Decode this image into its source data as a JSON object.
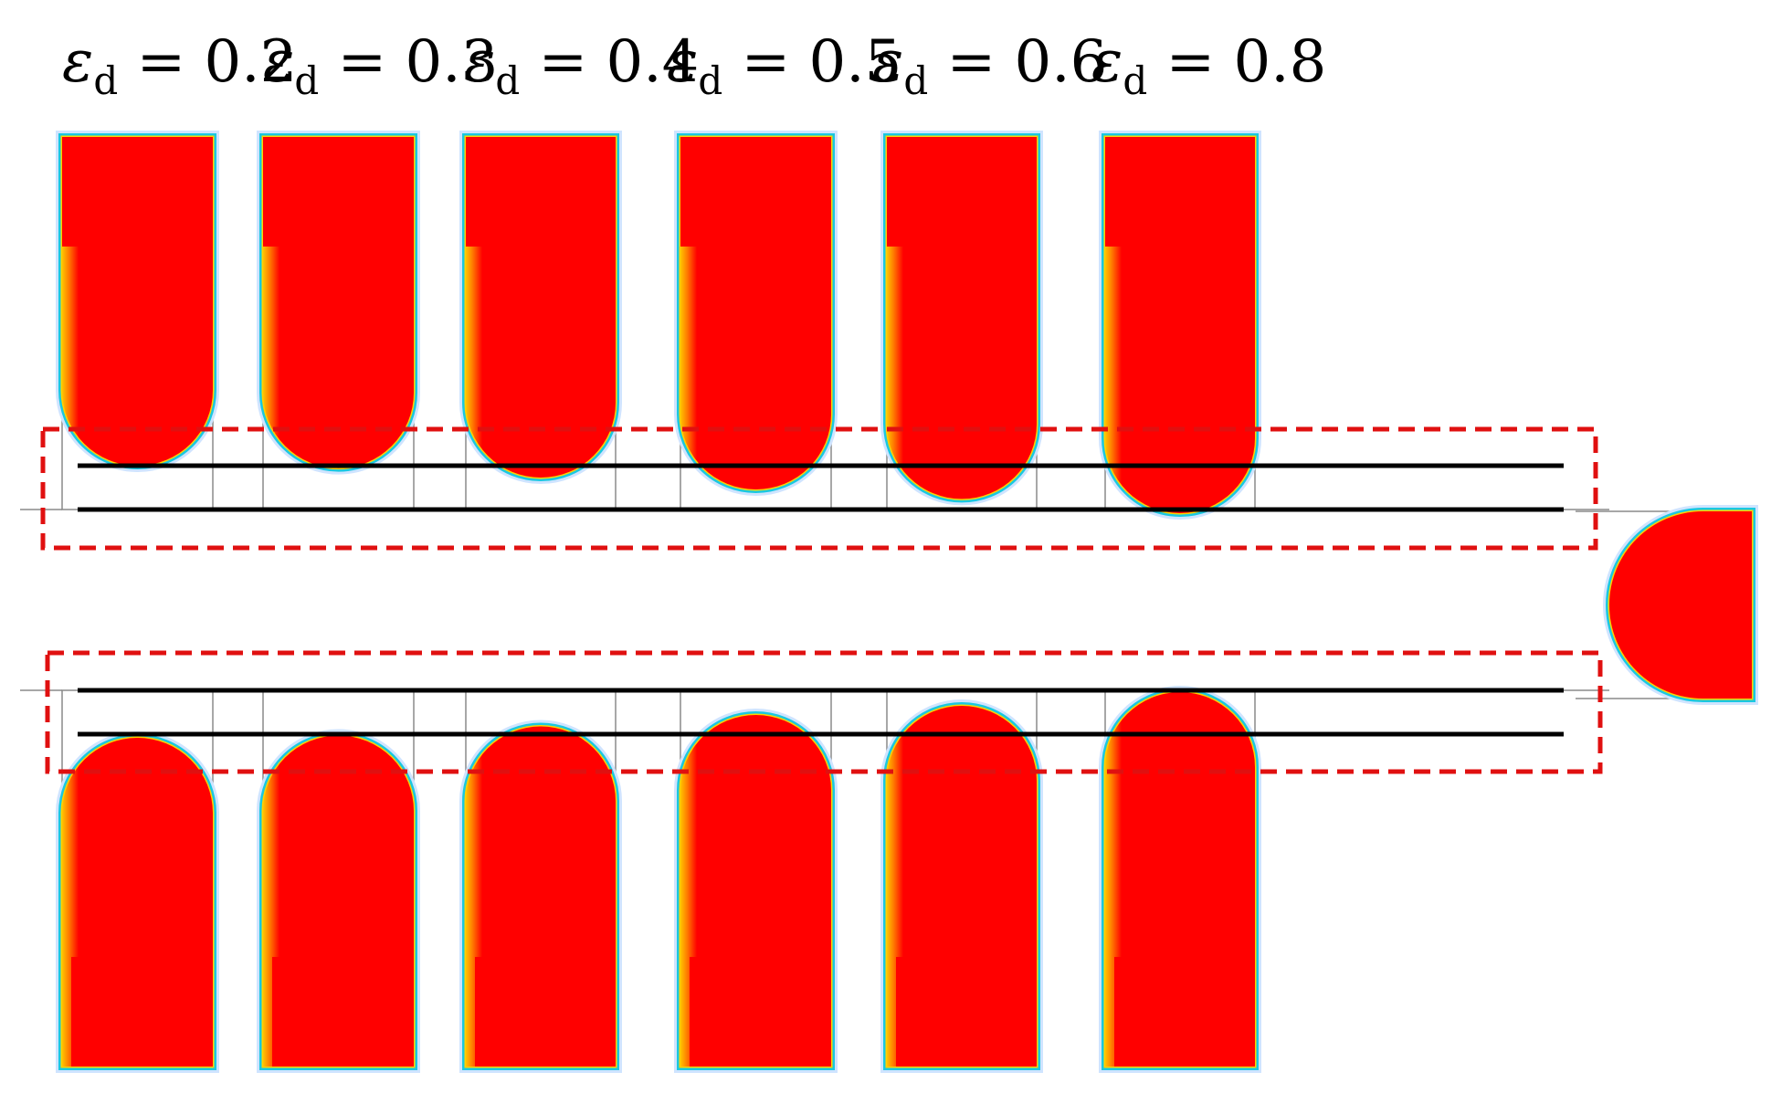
{
  "labels": [
    {
      "symbol": "ε",
      "subscript": "d",
      "equals": " = ",
      "value": "0.2"
    },
    {
      "symbol": "ε",
      "subscript": "d",
      "equals": " = ",
      "value": "0.3"
    },
    {
      "symbol": "ε",
      "subscript": "d",
      "equals": " = ",
      "value": "0.4"
    },
    {
      "symbol": "ε",
      "subscript": "d",
      "equals": " = ",
      "value": "0.5"
    },
    {
      "symbol": "ε",
      "subscript": "d",
      "equals": " = ",
      "value": "0.6"
    },
    {
      "symbol": "ε",
      "subscript": "d",
      "equals": " = ",
      "value": "0.8"
    }
  ],
  "colors": {
    "phase": "#ff0000",
    "interface_outer": "#1ac8e0",
    "interface_inner": "#ffd200",
    "halo": "#cfe4ff",
    "boundary_box": "#e01010",
    "reference_line": "#000000",
    "outline": "#8a8a8a"
  },
  "relative_protrusion": [
    0.0,
    0.05,
    0.25,
    0.5,
    0.7,
    1.0
  ]
}
